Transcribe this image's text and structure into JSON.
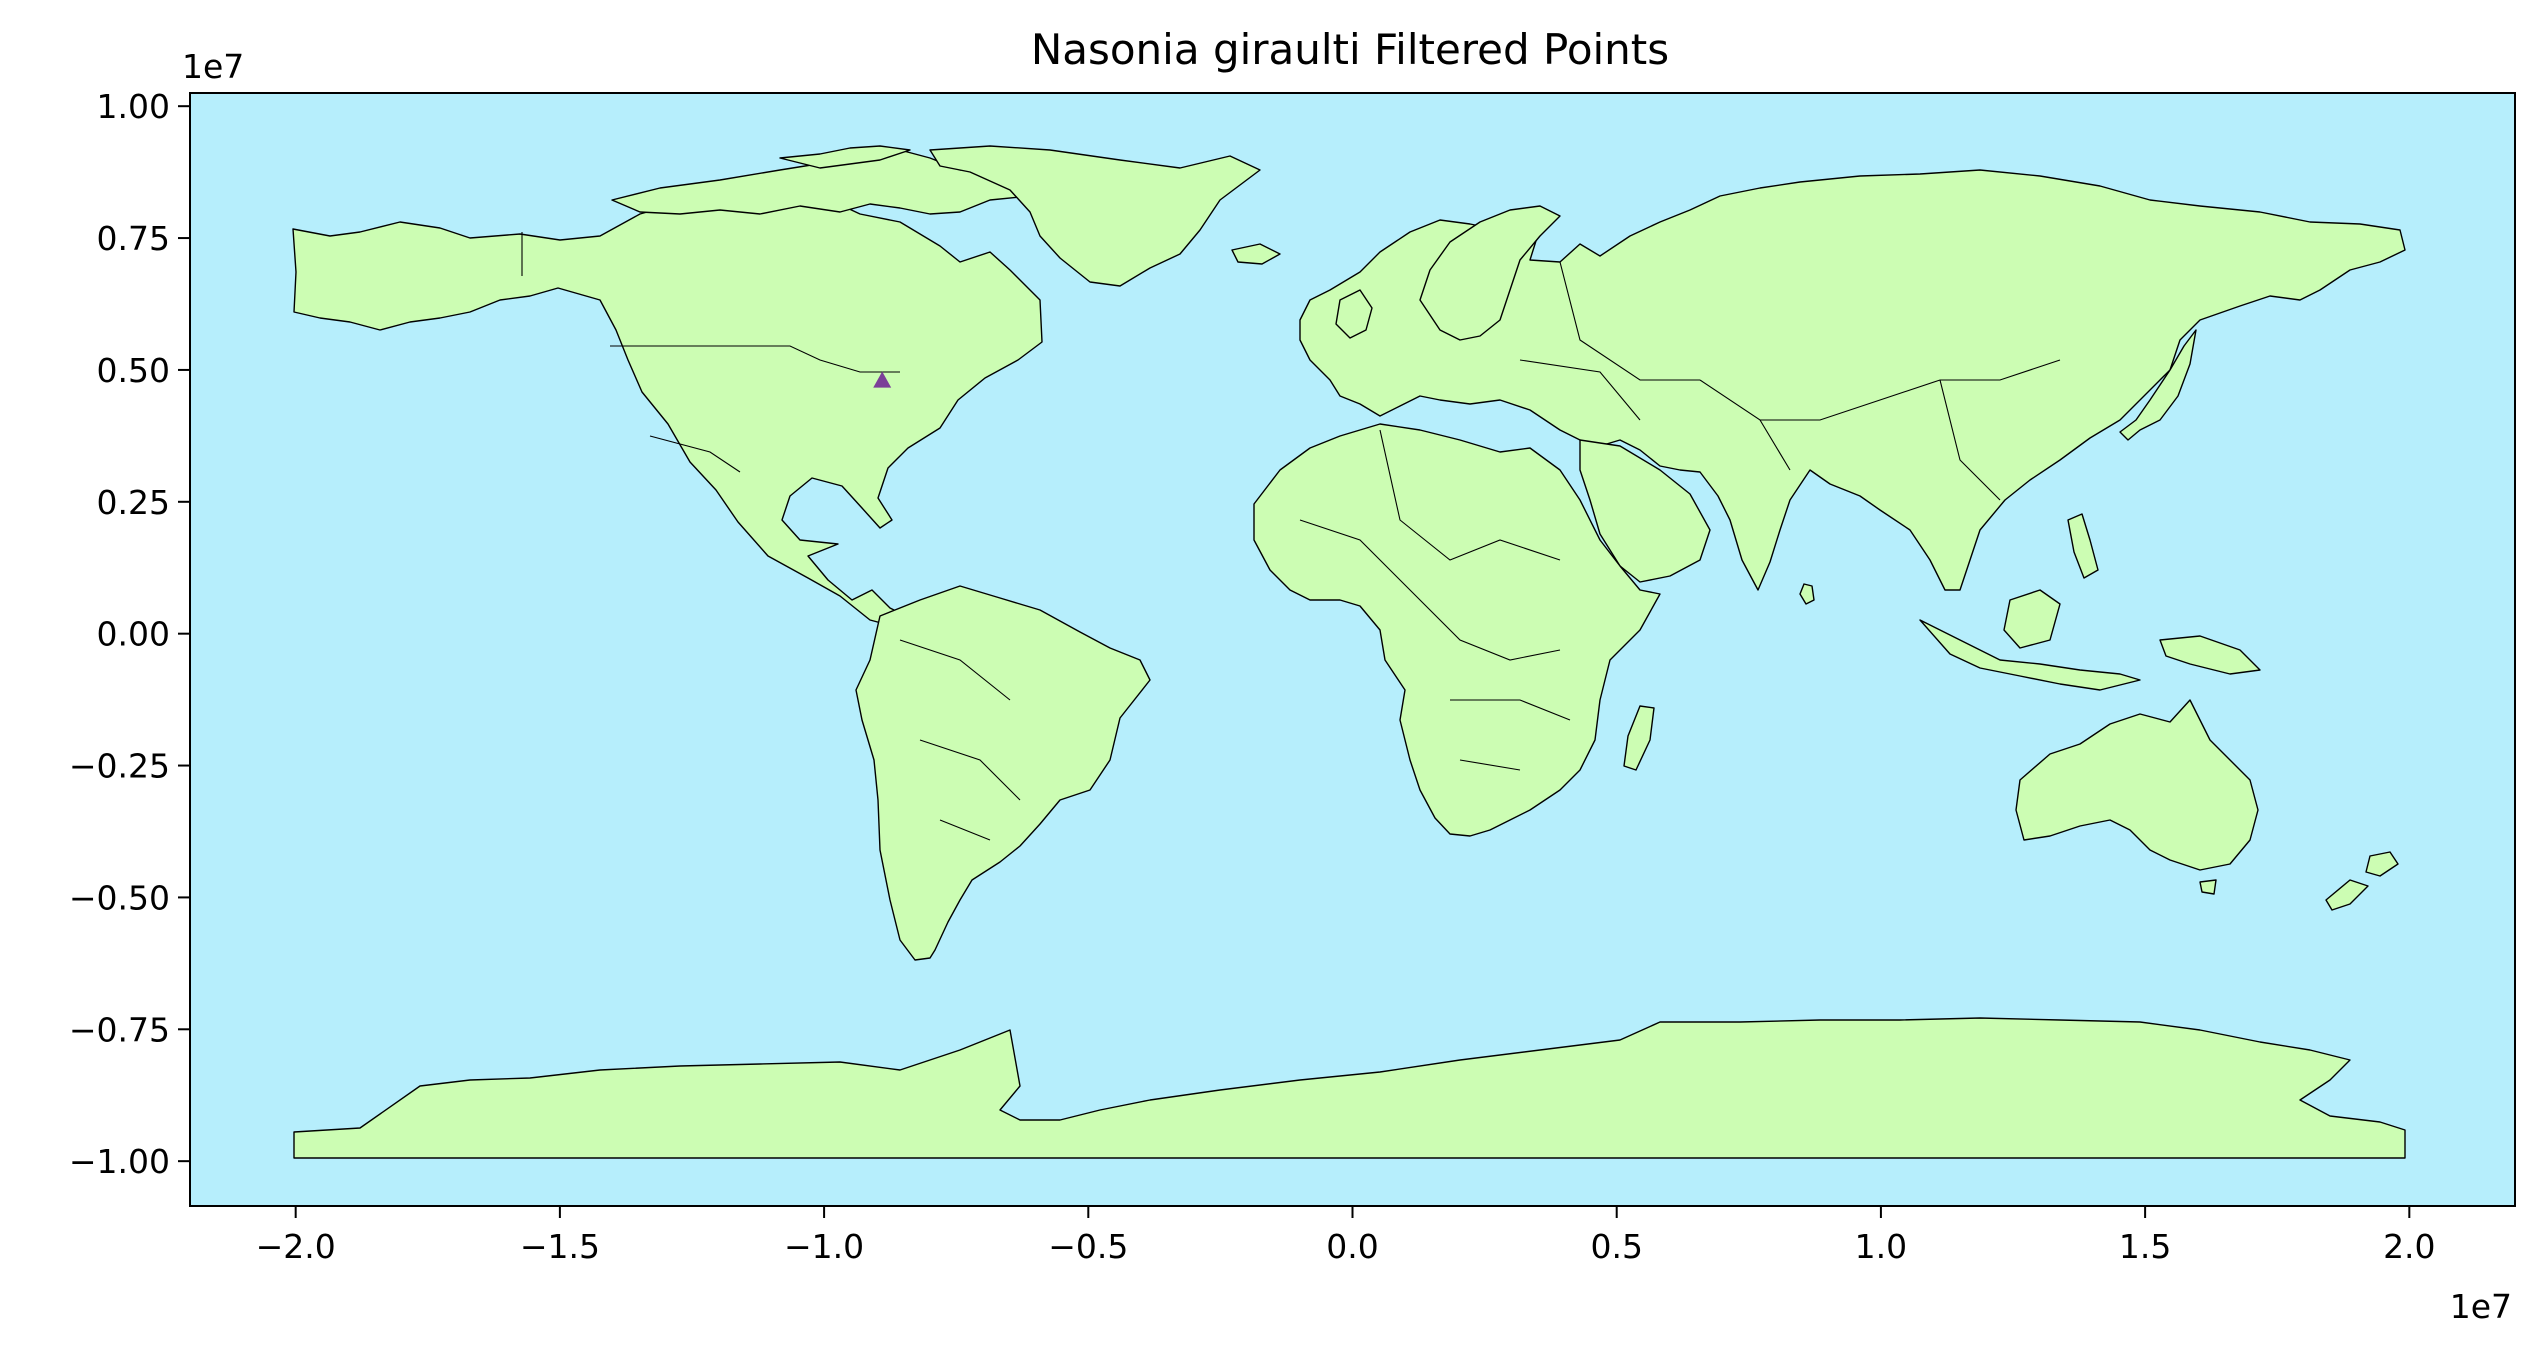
{
  "chart_data": {
    "type": "scatter",
    "title": "Nasonia giraulti Filtered Points",
    "xlabel": "",
    "ylabel": "",
    "x_offset_label": "1e7",
    "y_offset_label": "1e7",
    "xlim": [
      -22000000.0,
      22000000.0
    ],
    "ylim": [
      -10850000.0,
      10250000.0
    ],
    "x_ticks": [
      -20000000.0,
      -15000000.0,
      -10000000.0,
      -5000000.0,
      0,
      5000000.0,
      10000000.0,
      15000000.0,
      20000000.0
    ],
    "x_tick_labels": [
      "−2.0",
      "−1.5",
      "−1.0",
      "−0.5",
      "0.0",
      "0.5",
      "1.0",
      "1.5",
      "2.0"
    ],
    "y_ticks": [
      10000000.0,
      7500000.0,
      5000000.0,
      2500000.0,
      0,
      -2500000.0,
      -5000000.0,
      -7500000.0,
      -10000000.0
    ],
    "y_tick_labels": [
      "1.00",
      "0.75",
      "0.50",
      "0.25",
      "0.00",
      "−0.25",
      "−0.50",
      "−0.75",
      "−1.00"
    ],
    "grid": false,
    "colors": {
      "ocean": "#b6eefc",
      "land": "#ccfdb3",
      "outline": "#000000",
      "marker": "#7b3f98"
    },
    "series": [
      {
        "marker": "triangle",
        "points": [
          {
            "x": -8900000.0,
            "y": 4800000.0
          }
        ]
      }
    ]
  }
}
